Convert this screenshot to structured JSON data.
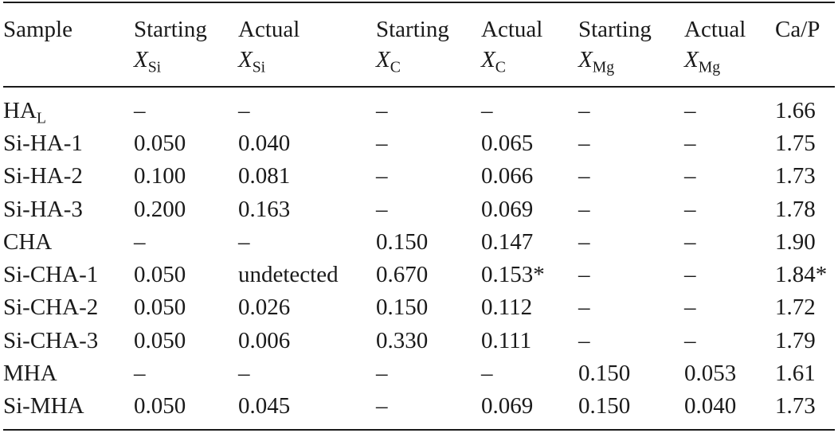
{
  "table": {
    "headers": [
      {
        "line1": "Sample",
        "var": "",
        "sub": ""
      },
      {
        "line1": "Starting",
        "var": "X",
        "sub": "Si"
      },
      {
        "line1": "Actual",
        "var": "X",
        "sub": "Si"
      },
      {
        "line1": "Starting",
        "var": "X",
        "sub": "C"
      },
      {
        "line1": "Actual",
        "var": "X",
        "sub": "C"
      },
      {
        "line1": "Starting",
        "var": "X",
        "sub": "Mg"
      },
      {
        "line1": "Actual",
        "var": "X",
        "sub": "Mg"
      },
      {
        "line1": "Ca/P",
        "var": "",
        "sub": ""
      }
    ],
    "rows": [
      {
        "sample": "HA",
        "sample_sub": "L",
        "cells": [
          "–",
          "–",
          "–",
          "–",
          "–",
          "–",
          "1.66"
        ]
      },
      {
        "sample": "Si-HA-1",
        "sample_sub": "",
        "cells": [
          "0.050",
          "0.040",
          "–",
          "0.065",
          "–",
          "–",
          "1.75"
        ]
      },
      {
        "sample": "Si-HA-2",
        "sample_sub": "",
        "cells": [
          "0.100",
          "0.081",
          "–",
          "0.066",
          "–",
          "–",
          "1.73"
        ]
      },
      {
        "sample": "Si-HA-3",
        "sample_sub": "",
        "cells": [
          "0.200",
          "0.163",
          "–",
          "0.069",
          "–",
          "–",
          "1.78"
        ]
      },
      {
        "sample": "CHA",
        "sample_sub": "",
        "cells": [
          "–",
          "–",
          "0.150",
          "0.147",
          "–",
          "–",
          "1.90"
        ]
      },
      {
        "sample": "Si-CHA-1",
        "sample_sub": "",
        "cells": [
          "0.050",
          "undetected",
          "0.670",
          "0.153*",
          "–",
          "–",
          "1.84*"
        ]
      },
      {
        "sample": "Si-CHA-2",
        "sample_sub": "",
        "cells": [
          "0.050",
          "0.026",
          "0.150",
          "0.112",
          "–",
          "–",
          "1.72"
        ]
      },
      {
        "sample": "Si-CHA-3",
        "sample_sub": "",
        "cells": [
          "0.050",
          "0.006",
          "0.330",
          "0.111",
          "–",
          "–",
          "1.79"
        ]
      },
      {
        "sample": "MHA",
        "sample_sub": "",
        "cells": [
          "–",
          "–",
          "–",
          "–",
          "0.150",
          "0.053",
          "1.61"
        ]
      },
      {
        "sample": "Si-MHA",
        "sample_sub": "",
        "cells": [
          "0.050",
          "0.045",
          "–",
          "0.069",
          "0.150",
          "0.040",
          "1.73"
        ]
      }
    ]
  }
}
